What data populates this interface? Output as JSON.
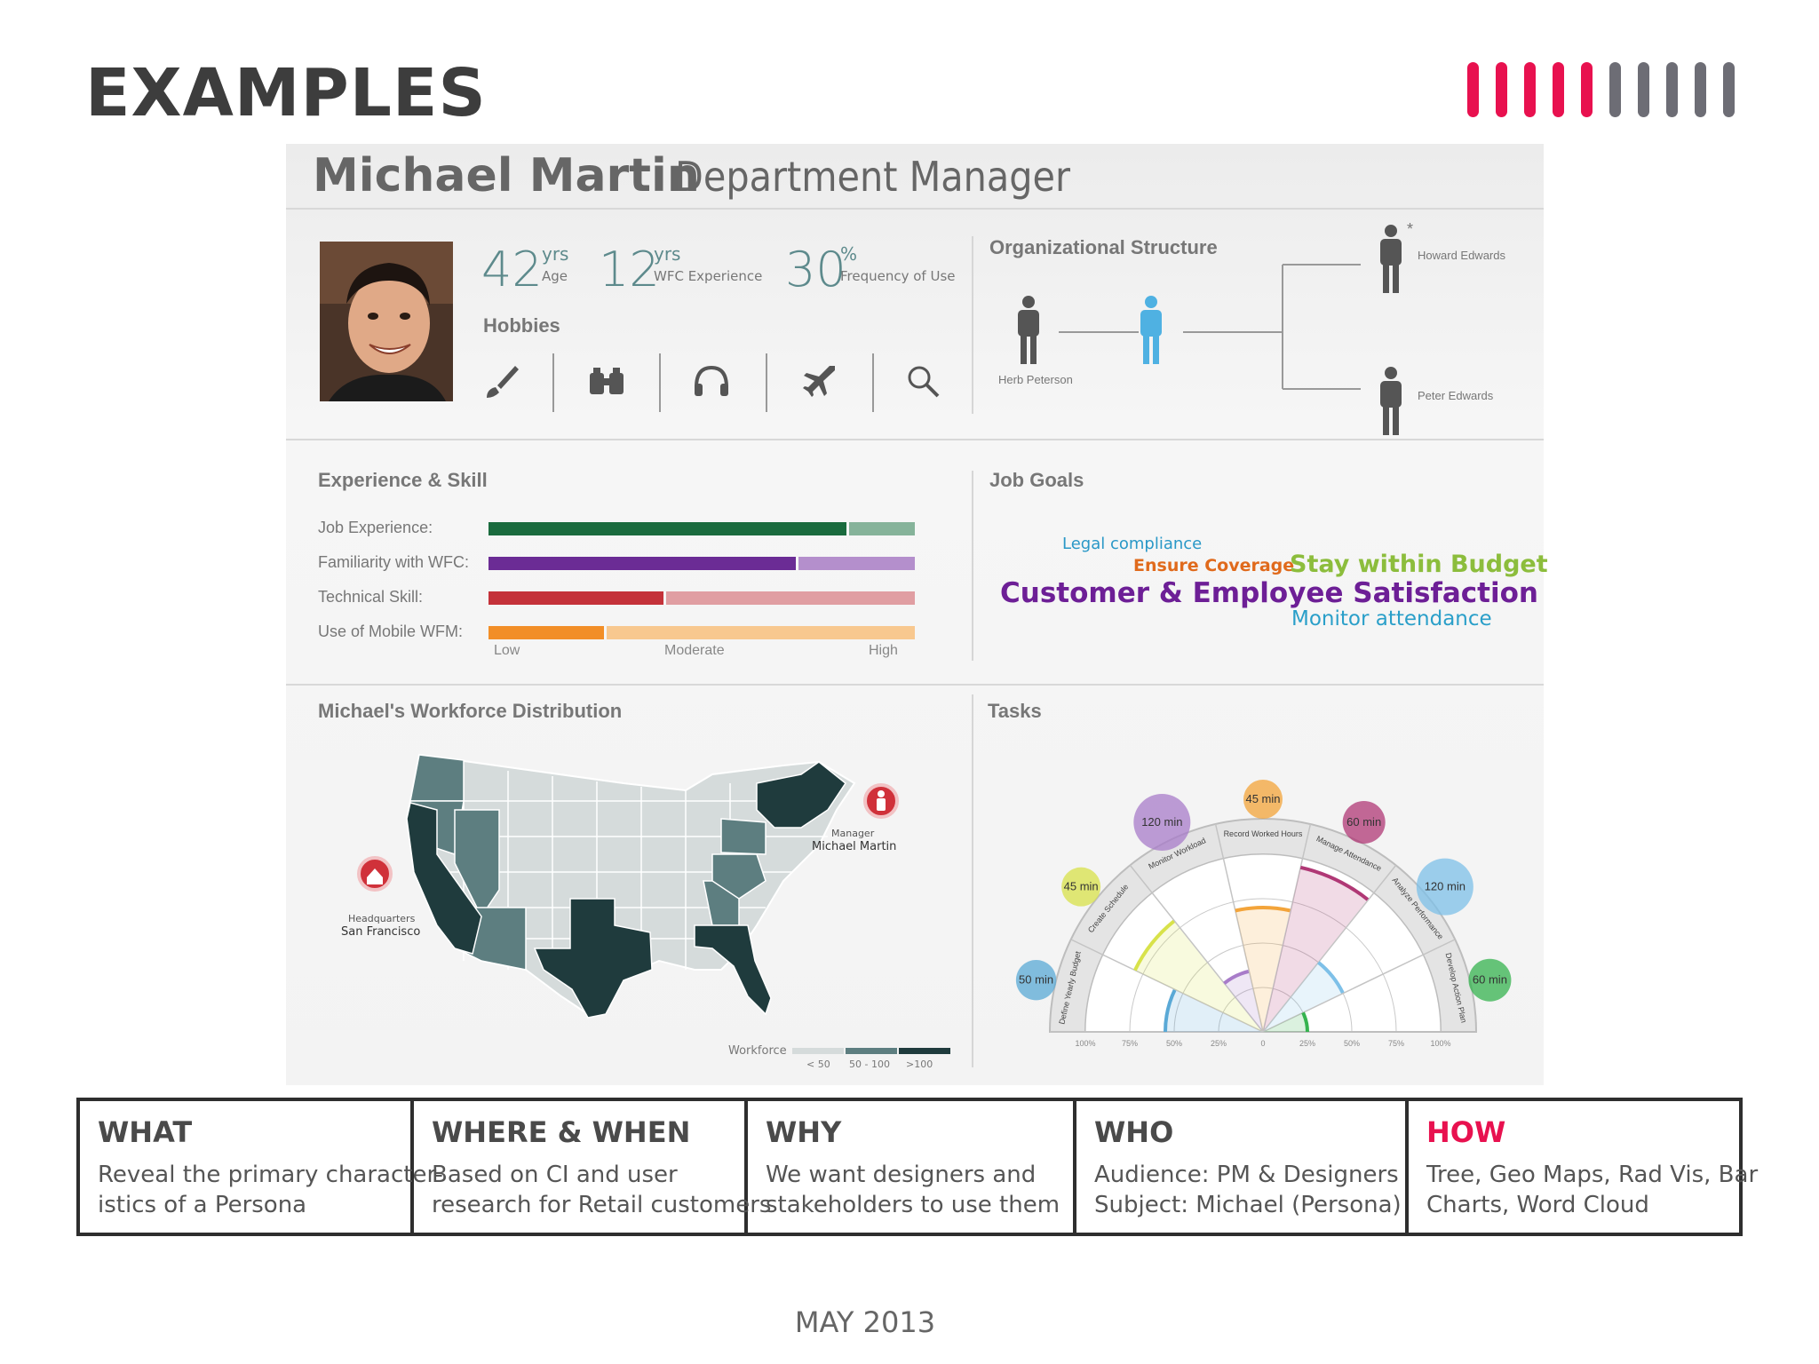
{
  "slide": {
    "title": "EXAMPLES",
    "date": "MAY 2013"
  },
  "colors": {
    "accent": "#e8114f",
    "gray_stripe": "#6d6d75",
    "teal": "#5d8a8c"
  },
  "persona": {
    "name": "Michael Martin",
    "role": "Department Manager",
    "stats": [
      {
        "value": "42",
        "unit": "yrs",
        "label": "Age"
      },
      {
        "value": "12",
        "unit": "yrs",
        "label": "WFC Experience"
      },
      {
        "value": "30",
        "unit": "%",
        "label": "Frequency of Use"
      }
    ],
    "hobbies_title": "Hobbies",
    "hobbies": [
      "paintbrush-icon",
      "binoculars-icon",
      "headphones-icon",
      "airplane-icon",
      "magnifier-icon"
    ]
  },
  "org": {
    "title": "Organizational Structure",
    "left_person": "Herb Peterson",
    "top_person": "Howard Edwards",
    "bottom_person": "Peter Edwards",
    "asterisk": "*"
  },
  "skills": {
    "title": "Experience & Skill",
    "items": [
      {
        "label": "Job Experience:",
        "level": 0.84,
        "dark": "#1a6b3e",
        "light": "#86b39a"
      },
      {
        "label": "Familiarity with WFC:",
        "level": 0.72,
        "dark": "#6b2c95",
        "light": "#b48fcc"
      },
      {
        "label": "Technical Skill:",
        "level": 0.41,
        "dark": "#c4323a",
        "light": "#e09ea2"
      },
      {
        "label": "Use of Mobile WFM:",
        "level": 0.27,
        "dark": "#f28e27",
        "light": "#f8c88f"
      }
    ],
    "scale": [
      "Low",
      "Moderate",
      "High"
    ]
  },
  "goals": {
    "title": "Job Goals",
    "words": [
      {
        "text": "Legal compliance",
        "color": "#2a98c7"
      },
      {
        "text": "Ensure Coverage",
        "color": "#e06a1c"
      },
      {
        "text": "Stay within Budget",
        "color": "#8cbd3c"
      },
      {
        "text": "Customer & Employee Satisfaction",
        "color": "#6d1f96"
      },
      {
        "text": "Monitor attendance",
        "color": "#2a9fc9"
      }
    ]
  },
  "map": {
    "title": "Michael's Workforce Distribution",
    "hq_label": "Headquarters",
    "hq_city": "San Francisco",
    "mgr_label": "Manager",
    "mgr_name": "Michael Martin",
    "legend_title": "Workforce",
    "legend": [
      {
        "label": "< 50",
        "color": "#d5dbdb"
      },
      {
        "label": "50 - 100",
        "color": "#5d7e80"
      },
      {
        "label": ">100",
        "color": "#1f3b3d"
      }
    ]
  },
  "tasks": {
    "title": "Tasks",
    "unit": "min",
    "items": [
      {
        "name": "Define Yearly Budget",
        "minutes": "50",
        "color": "#5aa9d6",
        "pct": 0.55
      },
      {
        "name": "Create Schedule",
        "minutes": "45",
        "color": "#d8e24a",
        "pct": 0.8
      },
      {
        "name": "Monitor Workload",
        "minutes": "120",
        "color": "#a87cc9",
        "pct": 0.35
      },
      {
        "name": "Record Worked Hours",
        "minutes": "45",
        "color": "#f3a43a",
        "pct": 0.7
      },
      {
        "name": "Manage Attendance",
        "minutes": "60",
        "color": "#b03875",
        "pct": 0.95
      },
      {
        "name": "Analyze Performance",
        "minutes": "120",
        "color": "#7ec0e8",
        "pct": 0.5
      },
      {
        "name": "Develop Action Plan",
        "minutes": "60",
        "color": "#36b34f",
        "pct": 0.25
      }
    ],
    "axis_labels": [
      "100%",
      "75%",
      "50%",
      "25%",
      "0",
      "25%",
      "50%",
      "75%",
      "100%"
    ]
  },
  "summary": [
    {
      "head": "WHAT",
      "body": "Reveal the primary character-\nistics of a Persona"
    },
    {
      "head": "WHERE & WHEN",
      "body": "Based on CI and user\nresearch for Retail customers"
    },
    {
      "head": "WHY",
      "body": "We want designers and\nstakeholders to use them"
    },
    {
      "head": "WHO",
      "body": "Audience: PM & Designers\nSubject: Michael (Persona)"
    },
    {
      "head": "HOW",
      "body": "Tree, Geo Maps, Rad Vis, Bar\nCharts, Word Cloud"
    }
  ]
}
